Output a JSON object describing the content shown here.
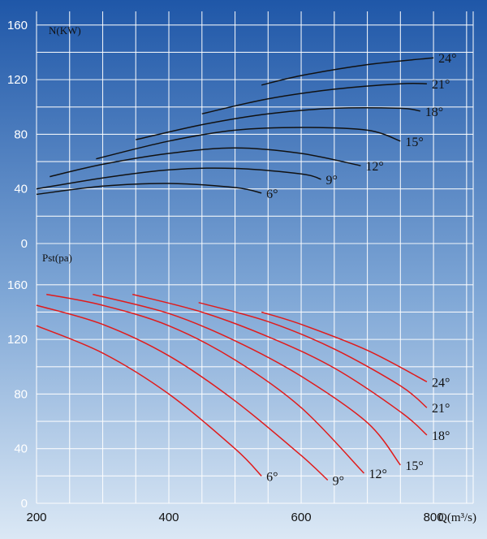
{
  "colors": {
    "bg_top": "#1f57a8",
    "bg_bottom": "#dbe8f5",
    "grid": "#ffffff",
    "power_curve": "#111111",
    "pressure_curve": "#e11b1b"
  },
  "chart_data": [
    {
      "type": "line",
      "title": "",
      "ylabel": "N(KW)",
      "xlabel": "",
      "xlim": [
        200,
        860
      ],
      "ylim": [
        0,
        170
      ],
      "yticks": [
        "0",
        "40",
        "80",
        "120",
        "160"
      ],
      "grid": true,
      "series": [
        {
          "name": "6°",
          "x": [
            200,
            300,
            400,
            500,
            540
          ],
          "y": [
            36,
            42,
            44,
            41,
            37
          ]
        },
        {
          "name": "9°",
          "x": [
            200,
            300,
            400,
            500,
            600,
            630
          ],
          "y": [
            40,
            48,
            54,
            55,
            51,
            47
          ]
        },
        {
          "name": "12°",
          "x": [
            220,
            300,
            400,
            500,
            600,
            690
          ],
          "y": [
            49,
            58,
            66,
            70,
            66,
            57
          ]
        },
        {
          "name": "15°",
          "x": [
            290,
            400,
            500,
            600,
            700,
            750
          ],
          "y": [
            62,
            75,
            83,
            85,
            83,
            75
          ]
        },
        {
          "name": "18°",
          "x": [
            350,
            450,
            550,
            650,
            750,
            780
          ],
          "y": [
            76,
            87,
            95,
            99,
            99,
            97
          ]
        },
        {
          "name": "21°",
          "x": [
            450,
            550,
            650,
            750,
            790
          ],
          "y": [
            95,
            106,
            113,
            117,
            117
          ]
        },
        {
          "name": "24°",
          "x": [
            540,
            600,
            700,
            800
          ],
          "y": [
            116,
            123,
            131,
            136
          ]
        }
      ]
    },
    {
      "type": "line",
      "title": "",
      "ylabel": "Pst(pa)",
      "xlabel": "Q(m³/s)",
      "xlim": [
        200,
        860
      ],
      "ylim": [
        0,
        170
      ],
      "xticks": [
        "200",
        "400",
        "600",
        "800"
      ],
      "yticks": [
        "0",
        "40",
        "80",
        "120",
        "160"
      ],
      "grid": true,
      "series": [
        {
          "name": "6°",
          "x": [
            200,
            300,
            400,
            500,
            540
          ],
          "y": [
            130,
            110,
            80,
            40,
            20
          ]
        },
        {
          "name": "9°",
          "x": [
            200,
            300,
            400,
            500,
            600,
            640
          ],
          "y": [
            145,
            131,
            108,
            75,
            35,
            17
          ]
        },
        {
          "name": "12°",
          "x": [
            215,
            300,
            400,
            500,
            600,
            695
          ],
          "y": [
            153,
            145,
            130,
            105,
            70,
            22
          ]
        },
        {
          "name": "15°",
          "x": [
            285,
            400,
            500,
            600,
            700,
            750
          ],
          "y": [
            153,
            139,
            119,
            93,
            59,
            28
          ]
        },
        {
          "name": "18°",
          "x": [
            345,
            450,
            550,
            650,
            750,
            790
          ],
          "y": [
            153,
            140,
            122,
            99,
            67,
            50
          ]
        },
        {
          "name": "21°",
          "x": [
            445,
            550,
            650,
            750,
            790
          ],
          "y": [
            147,
            133,
            113,
            86,
            70
          ]
        },
        {
          "name": "24°",
          "x": [
            540,
            600,
            700,
            790
          ],
          "y": [
            140,
            131,
            112,
            89
          ]
        }
      ]
    }
  ],
  "labels": {
    "top_ylabel": "N(KW)",
    "bottom_ylabel": "Pst(pa)",
    "xlabel": "Q(m³/s)",
    "top_yticks": [
      "0",
      "40",
      "80",
      "120",
      "160"
    ],
    "bottom_yticks": [
      "0",
      "40",
      "80",
      "120",
      "160"
    ],
    "xticks": [
      "200",
      "400",
      "600",
      "800"
    ]
  }
}
